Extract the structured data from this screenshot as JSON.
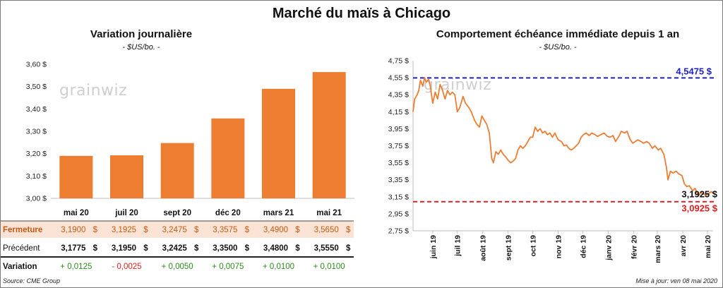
{
  "title": "Marché du maïs à Chicago",
  "watermark": "grainwiz",
  "left": {
    "title": "Variation  journalière",
    "subtitle": "- $US/bo. -",
    "row_labels": {
      "close": "Fermeture",
      "prev": "Précédent",
      "change": "Variation"
    },
    "currency": "$",
    "colors": {
      "bar": "#ED7D31",
      "close_row": "#FBE4D5",
      "close_text": "#C65911",
      "pos": "#2E8B1E",
      "neg": "#E02020"
    },
    "chart_data": {
      "type": "bar",
      "categories": [
        "mai 20",
        "juil 20",
        "sept 20",
        "déc 20",
        "mars 21",
        "mai 21"
      ],
      "values": [
        3.19,
        3.1925,
        3.2475,
        3.3575,
        3.49,
        3.565
      ],
      "ylim": [
        3.0,
        3.6
      ],
      "yticks": [
        "3,00 $",
        "3,10 $",
        "3,20 $",
        "3,30 $",
        "3,40 $",
        "3,50 $",
        "3,60 $"
      ]
    },
    "table": {
      "close": [
        "3,1900",
        "3,1925",
        "3,2475",
        "3,3575",
        "3,4900",
        "3,5650"
      ],
      "prev": [
        "3,1775",
        "3,1950",
        "3,2425",
        "3,3500",
        "3,4800",
        "3,5550"
      ],
      "change": [
        "+ 0,0125",
        "- 0,0025",
        "+ 0,0050",
        "+ 0,0075",
        "+ 0,0100",
        "+ 0,0100"
      ],
      "change_sign": [
        "pos",
        "neg",
        "pos",
        "pos",
        "pos",
        "pos"
      ]
    }
  },
  "right": {
    "title": "Comportement  échéance immédiate depuis 1 an",
    "subtitle": "- $US/bo. -",
    "colors": {
      "line": "#ED7D31",
      "high": "#1F1FC8",
      "low": "#E02020"
    },
    "chart_data": {
      "type": "line",
      "ylim": [
        2.75,
        4.75
      ],
      "yticks": [
        "2,75 $",
        "2,95 $",
        "3,15 $",
        "3,35 $",
        "3,55 $",
        "3,75 $",
        "3,95 $",
        "4,15 $",
        "4,35 $",
        "4,55 $",
        "4,75 $"
      ],
      "xticks": [
        "juin 19",
        "juil 19",
        "août 19",
        "sept 19",
        "oct 19",
        "nov 19",
        "déc 19",
        "janv 20",
        "févr 20",
        "mars 20",
        "avr 20",
        "mai 20"
      ],
      "series": [
        {
          "values": [
            {
              "x": "2019-05-08",
              "y": 4.15
            },
            {
              "x": "2019-05-10",
              "y": 4.3
            },
            {
              "x": "2019-05-13",
              "y": 4.35
            },
            {
              "x": "2019-05-15",
              "y": 4.4
            },
            {
              "x": "2019-05-17",
              "y": 4.52
            },
            {
              "x": "2019-05-20",
              "y": 4.45
            },
            {
              "x": "2019-05-22",
              "y": 4.55
            },
            {
              "x": "2019-05-24",
              "y": 4.5
            },
            {
              "x": "2019-05-27",
              "y": 4.53
            },
            {
              "x": "2019-05-29",
              "y": 4.45
            },
            {
              "x": "2019-06-01",
              "y": 4.25
            },
            {
              "x": "2019-06-04",
              "y": 4.38
            },
            {
              "x": "2019-06-07",
              "y": 4.3
            },
            {
              "x": "2019-06-10",
              "y": 4.47
            },
            {
              "x": "2019-06-13",
              "y": 4.4
            },
            {
              "x": "2019-06-16",
              "y": 4.3
            },
            {
              "x": "2019-06-19",
              "y": 4.4
            },
            {
              "x": "2019-06-22",
              "y": 4.35
            },
            {
              "x": "2019-06-25",
              "y": 4.38
            },
            {
              "x": "2019-06-28",
              "y": 4.35
            },
            {
              "x": "2019-07-01",
              "y": 4.15
            },
            {
              "x": "2019-07-04",
              "y": 4.2
            },
            {
              "x": "2019-07-08",
              "y": 4.33
            },
            {
              "x": "2019-07-11",
              "y": 4.25
            },
            {
              "x": "2019-07-15",
              "y": 4.2
            },
            {
              "x": "2019-07-18",
              "y": 4.15
            },
            {
              "x": "2019-07-22",
              "y": 4.05
            },
            {
              "x": "2019-07-25",
              "y": 4.0
            },
            {
              "x": "2019-07-28",
              "y": 3.97
            },
            {
              "x": "2019-07-31",
              "y": 4.1
            },
            {
              "x": "2019-08-03",
              "y": 4.05
            },
            {
              "x": "2019-08-06",
              "y": 4.0
            },
            {
              "x": "2019-08-09",
              "y": 3.9
            },
            {
              "x": "2019-08-12",
              "y": 3.6
            },
            {
              "x": "2019-08-14",
              "y": 3.55
            },
            {
              "x": "2019-08-17",
              "y": 3.68
            },
            {
              "x": "2019-08-20",
              "y": 3.65
            },
            {
              "x": "2019-08-23",
              "y": 3.7
            },
            {
              "x": "2019-08-26",
              "y": 3.65
            },
            {
              "x": "2019-08-29",
              "y": 3.62
            },
            {
              "x": "2019-09-01",
              "y": 3.58
            },
            {
              "x": "2019-09-04",
              "y": 3.55
            },
            {
              "x": "2019-09-07",
              "y": 3.57
            },
            {
              "x": "2019-09-10",
              "y": 3.6
            },
            {
              "x": "2019-09-13",
              "y": 3.7
            },
            {
              "x": "2019-09-16",
              "y": 3.75
            },
            {
              "x": "2019-09-19",
              "y": 3.72
            },
            {
              "x": "2019-09-22",
              "y": 3.75
            },
            {
              "x": "2019-09-25",
              "y": 3.8
            },
            {
              "x": "2019-09-28",
              "y": 3.85
            },
            {
              "x": "2019-10-01",
              "y": 3.85
            },
            {
              "x": "2019-10-04",
              "y": 3.97
            },
            {
              "x": "2019-10-07",
              "y": 3.92
            },
            {
              "x": "2019-10-10",
              "y": 3.95
            },
            {
              "x": "2019-10-13",
              "y": 3.9
            },
            {
              "x": "2019-10-16",
              "y": 3.92
            },
            {
              "x": "2019-10-19",
              "y": 3.88
            },
            {
              "x": "2019-10-22",
              "y": 3.9
            },
            {
              "x": "2019-10-25",
              "y": 3.85
            },
            {
              "x": "2019-10-28",
              "y": 3.9
            },
            {
              "x": "2019-11-01",
              "y": 3.82
            },
            {
              "x": "2019-11-05",
              "y": 3.8
            },
            {
              "x": "2019-11-08",
              "y": 3.75
            },
            {
              "x": "2019-11-11",
              "y": 3.76
            },
            {
              "x": "2019-11-14",
              "y": 3.72
            },
            {
              "x": "2019-11-17",
              "y": 3.7
            },
            {
              "x": "2019-11-20",
              "y": 3.72
            },
            {
              "x": "2019-11-23",
              "y": 3.75
            },
            {
              "x": "2019-11-26",
              "y": 3.78
            },
            {
              "x": "2019-11-29",
              "y": 3.85
            },
            {
              "x": "2019-12-02",
              "y": 3.88
            },
            {
              "x": "2019-12-05",
              "y": 3.9
            },
            {
              "x": "2019-12-09",
              "y": 3.87
            },
            {
              "x": "2019-12-12",
              "y": 3.9
            },
            {
              "x": "2019-12-16",
              "y": 3.88
            },
            {
              "x": "2019-12-19",
              "y": 3.86
            },
            {
              "x": "2019-12-23",
              "y": 3.88
            },
            {
              "x": "2019-12-27",
              "y": 3.9
            },
            {
              "x": "2019-12-31",
              "y": 3.86
            },
            {
              "x": "2020-01-03",
              "y": 3.85
            },
            {
              "x": "2020-01-07",
              "y": 3.87
            },
            {
              "x": "2020-01-10",
              "y": 3.8
            },
            {
              "x": "2020-01-14",
              "y": 3.86
            },
            {
              "x": "2020-01-17",
              "y": 3.92
            },
            {
              "x": "2020-01-21",
              "y": 3.9
            },
            {
              "x": "2020-01-24",
              "y": 3.92
            },
            {
              "x": "2020-01-28",
              "y": 3.82
            },
            {
              "x": "2020-01-31",
              "y": 3.78
            },
            {
              "x": "2020-02-03",
              "y": 3.8
            },
            {
              "x": "2020-02-06",
              "y": 3.82
            },
            {
              "x": "2020-02-10",
              "y": 3.8
            },
            {
              "x": "2020-02-13",
              "y": 3.78
            },
            {
              "x": "2020-02-17",
              "y": 3.8
            },
            {
              "x": "2020-02-20",
              "y": 3.78
            },
            {
              "x": "2020-02-24",
              "y": 3.72
            },
            {
              "x": "2020-02-27",
              "y": 3.75
            },
            {
              "x": "2020-03-02",
              "y": 3.7
            },
            {
              "x": "2020-03-05",
              "y": 3.72
            },
            {
              "x": "2020-03-09",
              "y": 3.65
            },
            {
              "x": "2020-03-12",
              "y": 3.5
            },
            {
              "x": "2020-03-14",
              "y": 3.35
            },
            {
              "x": "2020-03-17",
              "y": 3.45
            },
            {
              "x": "2020-03-20",
              "y": 3.43
            },
            {
              "x": "2020-03-24",
              "y": 3.45
            },
            {
              "x": "2020-03-27",
              "y": 3.42
            },
            {
              "x": "2020-03-31",
              "y": 3.4
            },
            {
              "x": "2020-04-03",
              "y": 3.3
            },
            {
              "x": "2020-04-06",
              "y": 3.27
            },
            {
              "x": "2020-04-09",
              "y": 3.28
            },
            {
              "x": "2020-04-13",
              "y": 3.22
            },
            {
              "x": "2020-04-16",
              "y": 3.25
            },
            {
              "x": "2020-04-20",
              "y": 3.16
            },
            {
              "x": "2020-04-23",
              "y": 3.2
            },
            {
              "x": "2020-04-27",
              "y": 3.18
            },
            {
              "x": "2020-04-30",
              "y": 3.17
            },
            {
              "x": "2020-05-04",
              "y": 3.2
            },
            {
              "x": "2020-05-06",
              "y": 3.21
            },
            {
              "x": "2020-05-08",
              "y": 3.1925
            }
          ]
        }
      ],
      "reference_lines": [
        {
          "label": "4,5475 $",
          "value": 4.5475,
          "color": "high"
        },
        {
          "label": "3,0925 $",
          "value": 3.0925,
          "color": "low"
        }
      ],
      "last_value_label": "3,1925 $"
    }
  },
  "footer": {
    "source": "Source: CME Group",
    "updated": "Mise à jour: ven 08 mai 2020"
  }
}
